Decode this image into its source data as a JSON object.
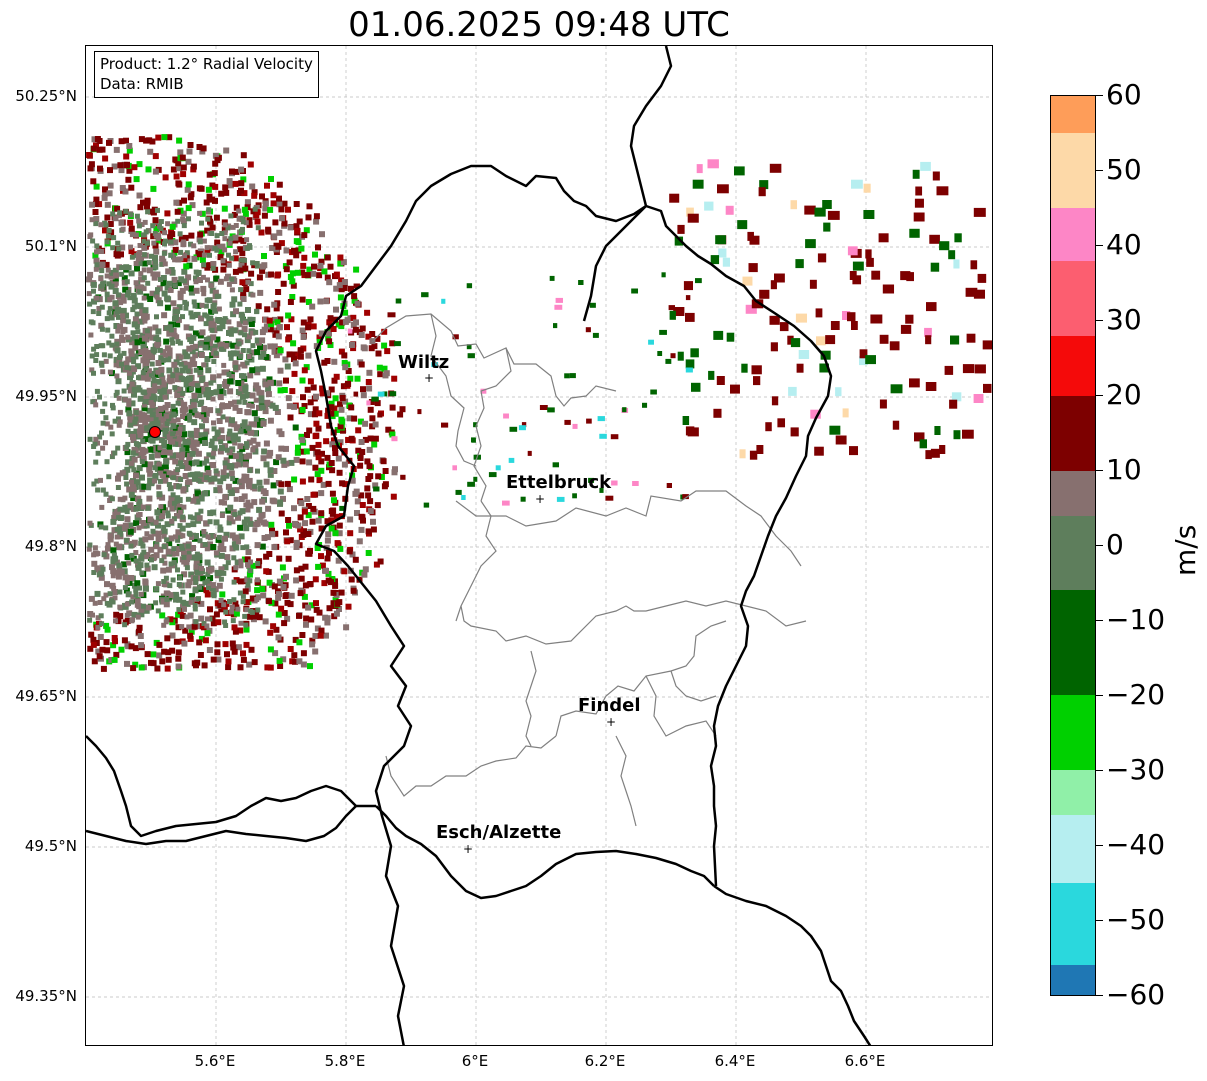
{
  "title": "01.06.2025 09:48 UTC",
  "info": {
    "product": "Product: 1.2° Radial Velocity",
    "data_source": "Data: RMIB"
  },
  "lat_labels": [
    "50.25°N",
    "50.1°N",
    "49.95°N",
    "49.8°N",
    "49.65°N",
    "49.5°N",
    "49.35°N"
  ],
  "lon_labels": [
    "5.6°E",
    "5.8°E",
    "6°E",
    "6.2°E",
    "6.4°E",
    "6.6°E"
  ],
  "cities": [
    "Wiltz",
    "Ettelbruck",
    "Findel",
    "Esch/Alzette"
  ],
  "colorbar": {
    "unit": "m/s",
    "tick_labels": [
      "60",
      "50",
      "40",
      "30",
      "20",
      "10",
      "0",
      "−10",
      "−20",
      "−30",
      "−40",
      "−50",
      "−60"
    ],
    "range": [
      -60,
      60
    ],
    "colors": {
      "orange": "#fe9d59",
      "peach": "#fdd9a8",
      "pink": "#fd86c6",
      "red": "#f50a0a",
      "dark_red": "#7d0000",
      "brown_gray": "#87706f",
      "gray_green": "#5e7e5c",
      "dark_green": "#006400",
      "green": "#00d000",
      "light_green": "#90f0a8",
      "light_cyan": "#b6eef0",
      "cyan": "#2ad8dd",
      "blue": "#1f77b4"
    }
  },
  "radar_marker_color": "#ff0000"
}
